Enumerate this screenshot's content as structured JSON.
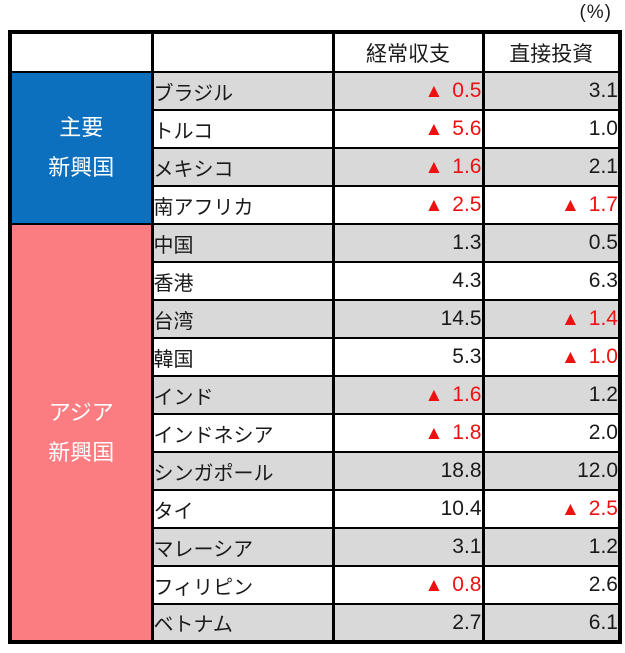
{
  "unit_label": "(%)",
  "colors": {
    "border": "#000000",
    "text": "#1a1a1a",
    "stripe": "#d9d9d9",
    "negative": "#ee1111",
    "header_bg": "#ffffff"
  },
  "table": {
    "negative_marker": "▲",
    "columns": [
      {
        "label": "経常収支"
      },
      {
        "label": "直接投資"
      }
    ],
    "groups": [
      {
        "label_lines": [
          "主要",
          "新興国"
        ],
        "color": "#0d70be",
        "rows": [
          {
            "country": "ブラジル",
            "current_account": {
              "negative": true,
              "value": "0.5"
            },
            "direct_investment": {
              "negative": false,
              "value": "3.1"
            }
          },
          {
            "country": "トルコ",
            "current_account": {
              "negative": true,
              "value": "5.6"
            },
            "direct_investment": {
              "negative": false,
              "value": "1.0"
            }
          },
          {
            "country": "メキシコ",
            "current_account": {
              "negative": true,
              "value": "1.6"
            },
            "direct_investment": {
              "negative": false,
              "value": "2.1"
            }
          },
          {
            "country": "南アフリカ",
            "current_account": {
              "negative": true,
              "value": "2.5"
            },
            "direct_investment": {
              "negative": true,
              "value": "1.7"
            }
          }
        ]
      },
      {
        "label_lines": [
          "アジア",
          "新興国"
        ],
        "color": "#fb7d81",
        "rows": [
          {
            "country": "中国",
            "current_account": {
              "negative": false,
              "value": "1.3"
            },
            "direct_investment": {
              "negative": false,
              "value": "0.5"
            }
          },
          {
            "country": "香港",
            "current_account": {
              "negative": false,
              "value": "4.3"
            },
            "direct_investment": {
              "negative": false,
              "value": "6.3"
            }
          },
          {
            "country": "台湾",
            "current_account": {
              "negative": false,
              "value": "14.5"
            },
            "direct_investment": {
              "negative": true,
              "value": "1.4"
            }
          },
          {
            "country": "韓国",
            "current_account": {
              "negative": false,
              "value": "5.3"
            },
            "direct_investment": {
              "negative": true,
              "value": "1.0"
            }
          },
          {
            "country": "インド",
            "current_account": {
              "negative": true,
              "value": "1.6"
            },
            "direct_investment": {
              "negative": false,
              "value": "1.2"
            }
          },
          {
            "country": "インドネシア",
            "current_account": {
              "negative": true,
              "value": "1.8"
            },
            "direct_investment": {
              "negative": false,
              "value": "2.0"
            }
          },
          {
            "country": "シンガポール",
            "current_account": {
              "negative": false,
              "value": "18.8"
            },
            "direct_investment": {
              "negative": false,
              "value": "12.0"
            }
          },
          {
            "country": "タイ",
            "current_account": {
              "negative": false,
              "value": "10.4"
            },
            "direct_investment": {
              "negative": true,
              "value": "2.5"
            }
          },
          {
            "country": "マレーシア",
            "current_account": {
              "negative": false,
              "value": "3.1"
            },
            "direct_investment": {
              "negative": false,
              "value": "1.2"
            }
          },
          {
            "country": "フィリピン",
            "current_account": {
              "negative": true,
              "value": "0.8"
            },
            "direct_investment": {
              "negative": false,
              "value": "2.6"
            }
          },
          {
            "country": "ベトナム",
            "current_account": {
              "negative": false,
              "value": "2.7"
            },
            "direct_investment": {
              "negative": false,
              "value": "6.1"
            }
          }
        ]
      }
    ]
  },
  "chart_data": {
    "type": "table",
    "title": "",
    "unit": "(%)",
    "columns": [
      "経常収支",
      "直接投資"
    ],
    "negative_marker": "▲",
    "row_groups": [
      {
        "group": "主要新興国",
        "rows": [
          {
            "country": "ブラジル",
            "経常収支": -0.5,
            "直接投資": 3.1
          },
          {
            "country": "トルコ",
            "経常収支": -5.6,
            "直接投資": 1.0
          },
          {
            "country": "メキシコ",
            "経常収支": -1.6,
            "直接投資": 2.1
          },
          {
            "country": "南アフリカ",
            "経常収支": -2.5,
            "直接投資": -1.7
          }
        ]
      },
      {
        "group": "アジア新興国",
        "rows": [
          {
            "country": "中国",
            "経常収支": 1.3,
            "直接投資": 0.5
          },
          {
            "country": "香港",
            "経常収支": 4.3,
            "直接投資": 6.3
          },
          {
            "country": "台湾",
            "経常収支": 14.5,
            "直接投資": -1.4
          },
          {
            "country": "韓国",
            "経常収支": 5.3,
            "直接投資": -1.0
          },
          {
            "country": "インド",
            "経常収支": -1.6,
            "直接投資": 1.2
          },
          {
            "country": "インドネシア",
            "経常収支": -1.8,
            "直接投資": 2.0
          },
          {
            "country": "シンガポール",
            "経常収支": 18.8,
            "直接投資": 12.0
          },
          {
            "country": "タイ",
            "経常収支": 10.4,
            "直接投資": -2.5
          },
          {
            "country": "マレーシア",
            "経常収支": 3.1,
            "直接投資": 1.2
          },
          {
            "country": "フィリピン",
            "経常収支": -0.8,
            "直接投資": 2.6
          },
          {
            "country": "ベトナム",
            "経常収支": 2.7,
            "直接投資": 6.1
          }
        ]
      }
    ]
  }
}
